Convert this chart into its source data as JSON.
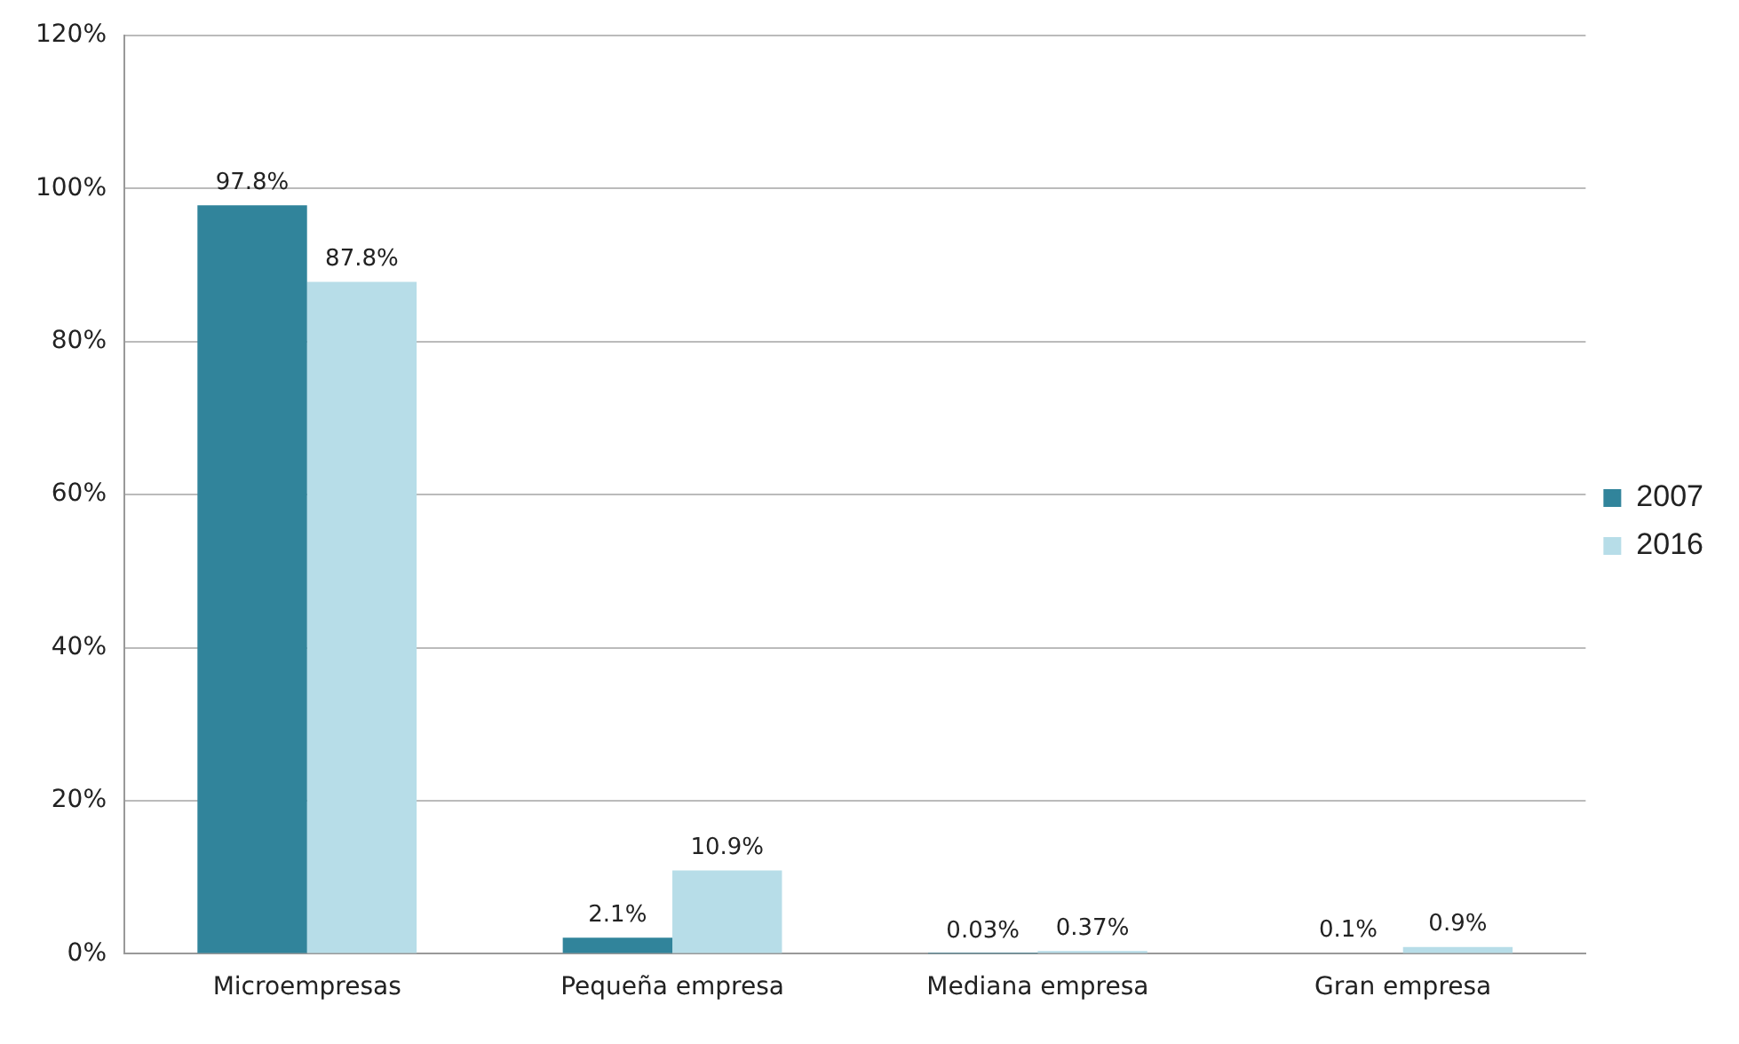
{
  "chart_data": {
    "type": "bar",
    "categories": [
      "Microempresas",
      "Pequeña empresa",
      "Mediana empresa",
      "Gran empresa"
    ],
    "series": [
      {
        "name": "2007",
        "color": "#31849b",
        "values": [
          97.8,
          2.1,
          0.03,
          0.1
        ],
        "value_labels": [
          "97.8%",
          "2.1%",
          "0.03%",
          "0.1%"
        ]
      },
      {
        "name": "2016",
        "color": "#b7dde8",
        "values": [
          87.8,
          10.9,
          0.37,
          0.9
        ],
        "value_labels": [
          "87.8%",
          "10.9%",
          "0.37%",
          "0.9%"
        ]
      }
    ],
    "ylim": [
      0,
      120
    ],
    "yticks": [
      {
        "value": 0,
        "label": "0%"
      },
      {
        "value": 20,
        "label": "20%"
      },
      {
        "value": 40,
        "label": "40%"
      },
      {
        "value": 60,
        "label": "60%"
      },
      {
        "value": 80,
        "label": "80%"
      },
      {
        "value": 100,
        "label": "100%"
      },
      {
        "value": 120,
        "label": "120%"
      }
    ],
    "grid": "y",
    "legend": "right"
  }
}
